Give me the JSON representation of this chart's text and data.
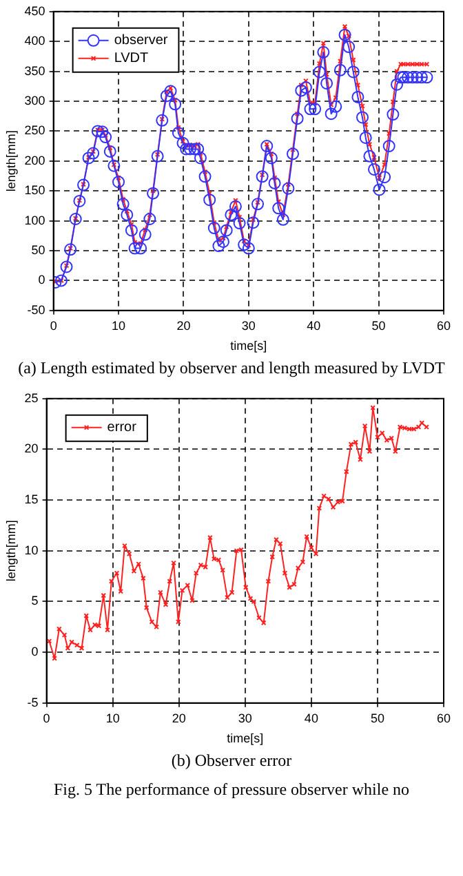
{
  "chart_data": [
    {
      "type": "line",
      "xlabel": "time[s]",
      "ylabel": "length[mm]",
      "xlim": [
        0,
        60
      ],
      "xticks": [
        0,
        10,
        20,
        30,
        40,
        50,
        60
      ],
      "ylim": [
        -50,
        450
      ],
      "yticks": [
        -50,
        0,
        50,
        100,
        150,
        200,
        250,
        300,
        350,
        400,
        450
      ],
      "grid": true,
      "legend": "top left",
      "line_style": "solid",
      "annotations": [
        "(a) Length estimated by observer and length measured by LVDT"
      ],
      "x": [
        0.3,
        1.2,
        2,
        2.6,
        3.4,
        4,
        4.6,
        5.4,
        6.1,
        6.8,
        7.5,
        8,
        8.7,
        9.3,
        10,
        10.7,
        11.3,
        12,
        12.5,
        13.4,
        14.1,
        14.8,
        15.3,
        16,
        16.7,
        17.4,
        18,
        18.7,
        19.2,
        19.9,
        20.4,
        21,
        21.7,
        22.2,
        22.6,
        23.3,
        24,
        24.7,
        25.4,
        26.1,
        26.6,
        27.3,
        28,
        28.6,
        29.3,
        30,
        30.7,
        31.4,
        32.1,
        32.8,
        33.5,
        34,
        34.6,
        35.3,
        36.1,
        36.8,
        37.5,
        38.1,
        38.8,
        39.5,
        40.2,
        40.9,
        41.5,
        42,
        42.7,
        43.4,
        44.1,
        44.8,
        45.4,
        46.1,
        46.8,
        47.5,
        48,
        48.6,
        49.3,
        50.1,
        50.9,
        51.6,
        52.2,
        52.8,
        53.4,
        53.8,
        54.5,
        55.2,
        55.9,
        56.6,
        57.4
      ],
      "series": [
        {
          "name": "observer",
          "color": "#3333ff",
          "marker": "circle",
          "values": [
            -3,
            0,
            23,
            52,
            103,
            133,
            160,
            205,
            213,
            250,
            249,
            240,
            216,
            192,
            165,
            128,
            110,
            84,
            54,
            54,
            77,
            103,
            146,
            208,
            268,
            309,
            317,
            295,
            247,
            230,
            220,
            220,
            220,
            220,
            205,
            174,
            135,
            88,
            58,
            65,
            84,
            110,
            124,
            96,
            60,
            54,
            97,
            128,
            174,
            225,
            205,
            163,
            121,
            102,
            154,
            212,
            271,
            318,
            323,
            287,
            287,
            349,
            382,
            330,
            279,
            291,
            352,
            411,
            391,
            349,
            307,
            273,
            239,
            208,
            186,
            152,
            173,
            225,
            278,
            328,
            340,
            340,
            340,
            340,
            340,
            340,
            340
          ]
        },
        {
          "name": "LVDT",
          "color": "#ff2020",
          "marker": "cross",
          "values": [
            -2,
            0,
            25,
            54,
            104,
            134,
            161,
            206,
            216,
            252,
            252,
            243,
            222,
            194,
            172,
            136,
            116,
            94,
            64,
            62,
            85,
            110,
            150,
            211,
            270,
            316,
            322,
            302,
            256,
            233,
            226,
            227,
            225,
            228,
            213,
            182,
            146,
            97,
            67,
            71,
            90,
            115,
            134,
            106,
            66,
            59,
            102,
            131,
            177,
            228,
            212,
            172,
            132,
            110,
            161,
            219,
            279,
            327,
            334,
            297,
            297,
            363,
            397,
            345,
            294,
            306,
            367,
            425,
            409,
            369,
            327,
            292,
            261,
            228,
            206,
            172,
            194,
            246,
            299,
            350,
            362,
            362,
            362,
            362,
            362,
            362,
            362
          ]
        }
      ]
    },
    {
      "type": "line",
      "xlabel": "time[s]",
      "ylabel": "length[mm]",
      "xlim": [
        0,
        60
      ],
      "xticks": [
        0,
        10,
        20,
        30,
        40,
        50,
        60
      ],
      "ylim": [
        -5,
        25
      ],
      "yticks": [
        -5,
        0,
        5,
        10,
        15,
        20,
        25
      ],
      "grid": true,
      "legend": "top left",
      "line_style": "solid",
      "annotations": [
        "(b) Observer error",
        "Fig. 5 The performance of pressure observer while no"
      ],
      "x": [
        0.4,
        1.2,
        1.9,
        2.7,
        3.2,
        3.8,
        4.6,
        5.3,
        6,
        6.6,
        7.3,
        7.9,
        8.6,
        9.2,
        9.8,
        10.6,
        11.2,
        11.8,
        12.5,
        13.2,
        13.9,
        14.6,
        15.1,
        15.9,
        16.6,
        17.2,
        18,
        18.6,
        19.2,
        19.9,
        20.5,
        21.3,
        22,
        22.6,
        23.3,
        24,
        24.7,
        25.3,
        26,
        26.6,
        27.3,
        28,
        28.7,
        29.4,
        30.1,
        30.8,
        31.3,
        32.1,
        32.8,
        33.5,
        34.1,
        34.7,
        35.3,
        36,
        36.7,
        37.4,
        38,
        38.7,
        39.3,
        40,
        40.7,
        41.2,
        41.9,
        42.6,
        43.3,
        44,
        44.7,
        45.3,
        46,
        46.7,
        47.4,
        48.1,
        48.8,
        49.3,
        50,
        50.7,
        51.4,
        52.1,
        52.7,
        53.4,
        54.1,
        54.8,
        55.5,
        56.2,
        56.7,
        57.4
      ],
      "series": [
        {
          "name": "error",
          "color": "#ff2020",
          "marker": "cross",
          "values": [
            1.1,
            -0.6,
            2.3,
            1.7,
            0.4,
            1.0,
            0.7,
            0.4,
            3.6,
            2.2,
            2.7,
            2.6,
            5.6,
            2.2,
            7.0,
            7.8,
            6.0,
            10.5,
            9.7,
            8.0,
            8.7,
            7.3,
            4.4,
            3.0,
            2.5,
            5.9,
            4.7,
            7.0,
            8.8,
            3.0,
            6.1,
            6.6,
            5.1,
            7.8,
            8.6,
            8.4,
            11.3,
            9.2,
            9.1,
            8.1,
            5.4,
            5.9,
            10.0,
            10.1,
            6.4,
            5.3,
            5.0,
            3.4,
            2.9,
            7.0,
            9.4,
            11.1,
            10.7,
            7.8,
            6.4,
            6.7,
            8.3,
            8.9,
            11.4,
            10.3,
            9.7,
            14.2,
            15.4,
            15.1,
            14.3,
            14.8,
            14.9,
            17.8,
            20.5,
            20.7,
            19.0,
            22.3,
            19.8,
            24.1,
            21.2,
            21.6,
            20.9,
            21.1,
            19.8,
            22.2,
            22.1,
            22.0,
            22.0,
            22.2,
            22.6,
            22.2
          ]
        }
      ]
    }
  ]
}
